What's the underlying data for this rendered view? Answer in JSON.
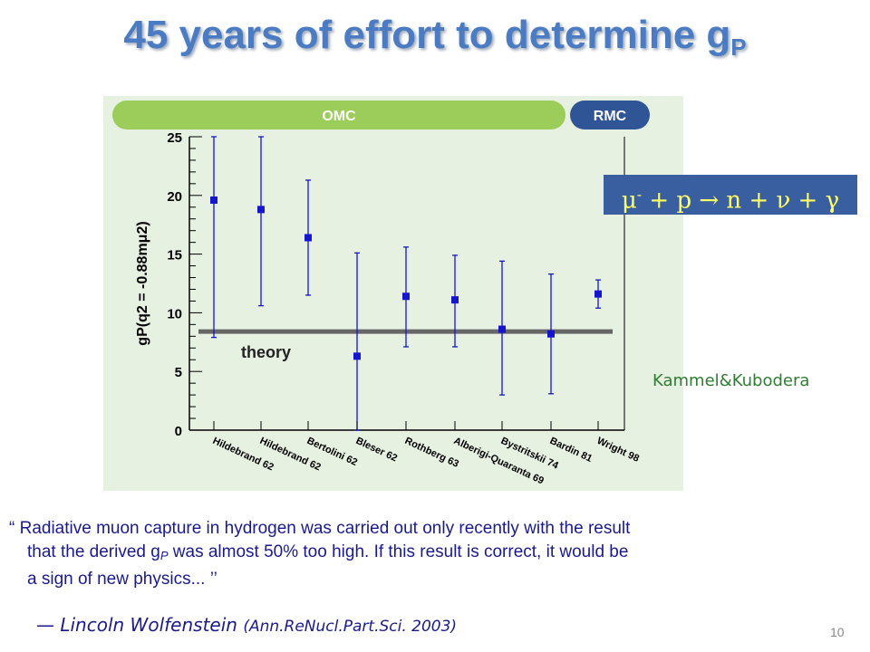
{
  "title": {
    "main": "45 years of effort to determine g",
    "sub": "P"
  },
  "chart_data": {
    "type": "scatter",
    "ylabel": "gP(q2 = -0.88mμ2)",
    "ylim": [
      0,
      25
    ],
    "yticks": [
      "0",
      "5",
      "10",
      "15",
      "20",
      "25"
    ],
    "categories": [
      "Hildebrand 62",
      "Hildebrand 62",
      "Bertolini 62",
      "Bleser 62",
      "Rothberg 63",
      "Alberigi-Quaranta 69",
      "Bystritskii 74",
      "Bardin 81",
      "Wright 98"
    ],
    "values": [
      19.6,
      18.8,
      16.4,
      6.3,
      11.4,
      11.1,
      8.6,
      8.2,
      11.6
    ],
    "err_low": [
      7.9,
      10.6,
      11.5,
      0,
      7.1,
      7.1,
      3.0,
      3.1,
      10.4
    ],
    "err_high": [
      25,
      25,
      21.3,
      15.1,
      15.6,
      14.9,
      14.4,
      13.3,
      12.8
    ],
    "theory": {
      "label": "theory",
      "value": 8.4
    },
    "bands": [
      {
        "label": "OMC",
        "color": "#9ccd5a"
      },
      {
        "label": "RMC",
        "color": "#2f5597"
      }
    ],
    "grid": false
  },
  "reaction": {
    "mu": "μ",
    "charge": "-",
    "rest": " + p → n + ν + γ"
  },
  "credit": "Kammel&Kubodera",
  "quote": {
    "line1": "“ Radiative muon capture in hydrogen was carried out only recently with the result",
    "line2a": "that the derived g",
    "line2sub": "P",
    "line2b": " was almost 50% too high.  If this result is correct, it would be",
    "line3": "a sign of new physics... ’’"
  },
  "attribution": {
    "name": "— Lincoln Wolfenstein ",
    "ref": "(Ann.ReNucl.Part.Sci. 2003)"
  },
  "page_number": "10",
  "colors": {
    "title": "#4b7cc3",
    "marker": "#1515cc",
    "theory": "#666666",
    "panel": "#e6f1e1"
  }
}
